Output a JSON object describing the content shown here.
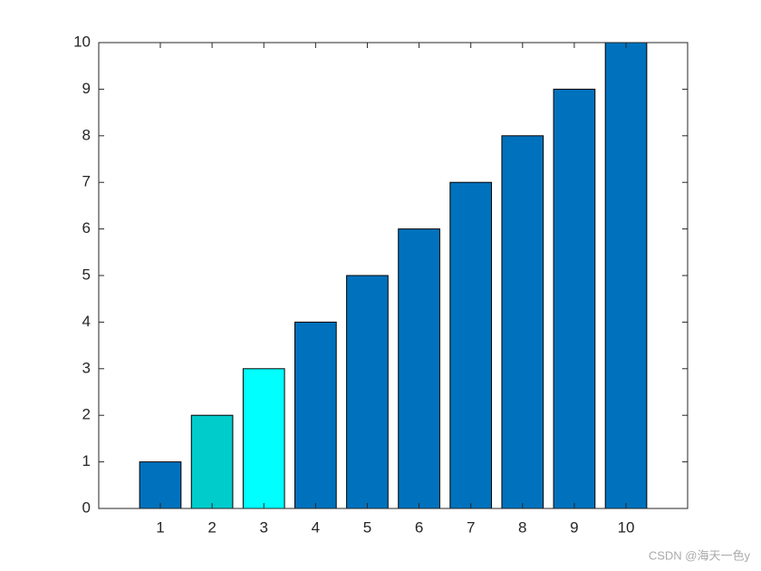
{
  "chart_data": {
    "type": "bar",
    "x": [
      1,
      2,
      3,
      4,
      5,
      6,
      7,
      8,
      9,
      10
    ],
    "values": [
      1,
      2,
      3,
      4,
      5,
      6,
      7,
      8,
      9,
      10
    ],
    "colors": [
      "#0072bd",
      "#00cccc",
      "#00ffff",
      "#0072bd",
      "#0072bd",
      "#0072bd",
      "#0072bd",
      "#0072bd",
      "#0072bd",
      "#0072bd"
    ],
    "xlim": [
      -0.19,
      11.19
    ],
    "xticks": [
      1,
      2,
      3,
      4,
      5,
      6,
      7,
      8,
      9,
      10
    ],
    "ylim": [
      0,
      10
    ],
    "yticks": [
      0,
      1,
      2,
      3,
      4,
      5,
      6,
      7,
      8,
      9,
      10
    ],
    "grid": false
  },
  "watermark": "CSDN @海天一色y"
}
